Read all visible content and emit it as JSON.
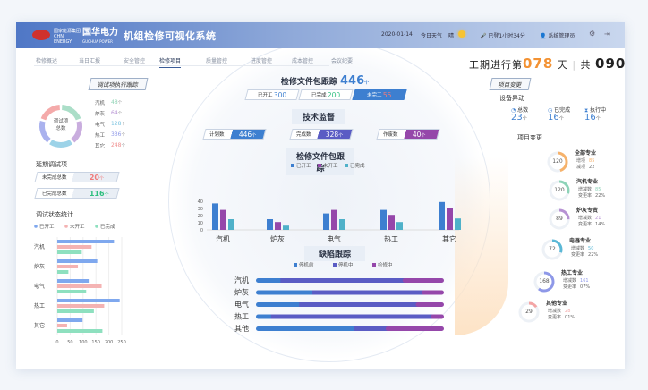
{
  "header": {
    "logo_text": "国家能源集团 CHN ENERGY",
    "brand": "国华电力",
    "brand_sub": "GUOHUA POWER",
    "title": "机组检修可视化系统",
    "date": "2020-01-14",
    "weather_label": "今日天气",
    "weather": "晴",
    "login": "已登1小时34分",
    "user": "系统管理员"
  },
  "nav": [
    {
      "label": "检修概述"
    },
    {
      "label": "当日汇报"
    },
    {
      "label": "安全管控"
    },
    {
      "label": "检修项目",
      "active": true
    },
    {
      "label": "质量管控"
    },
    {
      "label": "进度管控"
    },
    {
      "label": "成本管控"
    },
    {
      "label": "会议纪要"
    }
  ],
  "period": {
    "prefix": "工期进行第",
    "day": "078",
    "unit": "天",
    "total_prefix": "共",
    "total": "090",
    "total_unit": "天"
  },
  "left": {
    "tab": "调试项执行跟踪",
    "donut_label1": "调试项",
    "donut_label2": "总数",
    "donut_items": [
      {
        "name": "汽机",
        "value": "48",
        "unit": "个",
        "color": "#8fd3b5"
      },
      {
        "name": "炉灰",
        "value": "64",
        "unit": "个",
        "color": "#b792d3"
      },
      {
        "name": "电气",
        "value": "128",
        "unit": "个",
        "color": "#7cc4e0"
      },
      {
        "name": "热工",
        "value": "336",
        "unit": "个",
        "color": "#8e98e8"
      },
      {
        "name": "其它",
        "value": "248",
        "unit": "个",
        "color": "#f08e8e"
      }
    ],
    "delay_title": "延期调试项",
    "delay": [
      {
        "label": "未完成总数",
        "value": "20",
        "unit": "个",
        "color": "#f07a7a"
      },
      {
        "label": "已完成总数",
        "value": "116",
        "unit": "个",
        "color": "#2fbf7f"
      }
    ],
    "stat_title": "调试状态统计"
  },
  "chart_data": [
    {
      "type": "bar",
      "orientation": "horizontal",
      "title": "调试状态统计",
      "categories": [
        "汽机",
        "炉灰",
        "电气",
        "热工",
        "其它"
      ],
      "series": [
        {
          "name": "已开工",
          "color": "#7fa8ee",
          "values": [
            220,
            155,
            122,
            242,
            98
          ]
        },
        {
          "name": "未开工",
          "color": "#f4b3b3",
          "values": [
            133,
            80,
            172,
            182,
            38
          ]
        },
        {
          "name": "已完成",
          "color": "#8ee0bf",
          "values": [
            95,
            43,
            112,
            142,
            175
          ]
        }
      ],
      "xlim": [
        0,
        250
      ],
      "xticks": [
        "0",
        "50",
        "100",
        "150",
        "200",
        "250"
      ],
      "legend": "top"
    },
    {
      "type": "bar",
      "title": "检修文件包跟踪",
      "categories": [
        "汽机",
        "炉灰",
        "电气",
        "热工",
        "其它"
      ],
      "series": [
        {
          "name": "已开工",
          "color": "#3d7fd0",
          "values": [
            37,
            15,
            23,
            28,
            39
          ]
        },
        {
          "name": "未开工",
          "color": "#9547aa",
          "values": [
            28,
            11,
            28,
            21,
            30
          ]
        },
        {
          "name": "已完成",
          "color": "#4fb1c9",
          "values": [
            15,
            6,
            15,
            11,
            16
          ]
        }
      ],
      "ylim": [
        0,
        40
      ],
      "yticks": [
        "0",
        "10",
        "20",
        "30",
        "40"
      ],
      "legend": "top"
    },
    {
      "type": "bar",
      "stacked": true,
      "orientation": "horizontal",
      "title": "缺陷跟踪",
      "categories": [
        "汽机",
        "炉灰",
        "电气",
        "热工",
        "其他"
      ],
      "series": [
        {
          "name": "停机前",
          "color": "#3d7fd0",
          "values": [
            0.13,
            0.3,
            0.23,
            0.08,
            0.52
          ]
        },
        {
          "name": "停机中",
          "color": "#5a5cc4",
          "values": [
            0.65,
            0.58,
            0.62,
            0.85,
            0.17
          ]
        },
        {
          "name": "检修中",
          "color": "#9547aa",
          "values": [
            0.22,
            0.12,
            0.15,
            0.07,
            0.31
          ]
        }
      ],
      "legend": "top"
    }
  ],
  "center": {
    "pkg_title": "检修文件包跟踪",
    "pkg_total": "446",
    "unit": "个",
    "pkg_stats": [
      {
        "label": "已开工",
        "value": "300",
        "color": "#3d7fd0"
      },
      {
        "label": "已完成",
        "value": "200",
        "color": "#2fbf7f"
      },
      {
        "label": "未完工",
        "value": "55",
        "color": "#f07a7a"
      }
    ],
    "tech_title": "技术监督",
    "tech": [
      {
        "label": "计划数",
        "value": "446",
        "unit": "个",
        "color": "#3d7fd0"
      },
      {
        "label": "完成数",
        "value": "328",
        "unit": "个",
        "color": "#5a5cc4"
      },
      {
        "label": "作废数",
        "value": "40",
        "unit": "个",
        "color": "#9547aa"
      }
    ]
  },
  "right": {
    "tab": "项目变更",
    "device_title": "设备异动",
    "device": [
      {
        "icon": "pie-icon",
        "label": "总数",
        "value": "23",
        "unit": "个"
      },
      {
        "icon": "clock-icon",
        "label": "已完成",
        "value": "16",
        "unit": "个"
      },
      {
        "icon": "hourglass-icon",
        "label": "执行中",
        "value": "16",
        "unit": "个"
      }
    ],
    "change_title": "项目变更",
    "changes": [
      {
        "name": "全部专业",
        "total": "120",
        "k1": "增项",
        "v1": "85",
        "k2": "减项",
        "v2": "22",
        "color": "#f6b26b",
        "frac": 0.45
      },
      {
        "name": "汽机专业",
        "total": "120",
        "k1": "增减数",
        "v1": "85",
        "k2": "变更率",
        "v2": "22%",
        "color": "#8ed3b8",
        "frac": 0.3
      },
      {
        "name": "炉灰专责",
        "total": "89",
        "k1": "增减数",
        "v1": "21",
        "k2": "变更率",
        "v2": "14%",
        "color": "#b792d3",
        "frac": 0.25
      },
      {
        "name": "电器专业",
        "total": "72",
        "k1": "增减数",
        "v1": "50",
        "k2": "变更率",
        "v2": "22%",
        "color": "#5bb8d6",
        "frac": 0.3
      },
      {
        "name": "热工专业",
        "total": "168",
        "k1": "增减数",
        "v1": "161",
        "k2": "变更率",
        "v2": "07%",
        "color": "#8e98e8",
        "frac": 0.6
      },
      {
        "name": "其他专业",
        "total": "29",
        "k1": "增减数",
        "v1": "28",
        "k2": "变更率",
        "v2": "01%",
        "color": "#f4a5a5",
        "frac": 0.15
      }
    ]
  }
}
